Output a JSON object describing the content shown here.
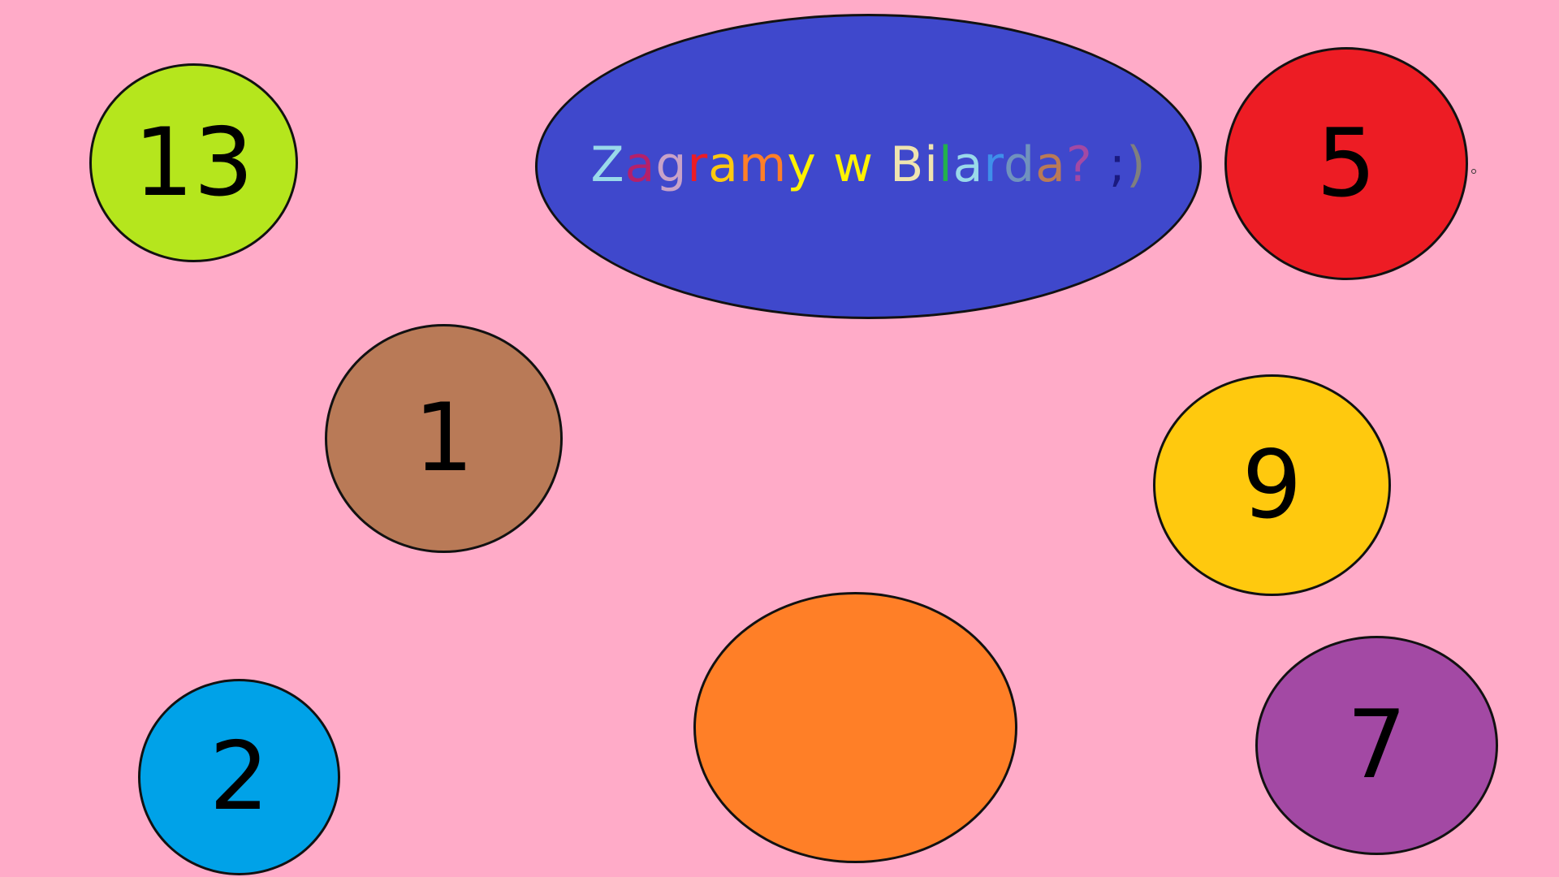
{
  "background_color": "#ffabc8",
  "title": {
    "text": "Zagramy w Bilarda? ;)",
    "fill_color": "#3f48cc",
    "letter_colors": [
      "#99d9ea",
      "#b5206a",
      "#c8a2c8",
      "#ed1c24",
      "#ffc90e",
      "#ff7f27",
      "#fff200",
      "#fff200",
      "#efe4b0",
      "#efe4b0",
      "#22b14c",
      "#99d9ea",
      "#3f8fea",
      "#7092be",
      "#b97a57",
      "#a349a4",
      "#1a1a80",
      "#7f7f7f",
      "#7f7f7f",
      "#ffe4ef",
      "#ffb3cf"
    ]
  },
  "balls": [
    {
      "label": "13",
      "color": "#b5e61d"
    },
    {
      "label": "5",
      "color": "#ed1c24"
    },
    {
      "label": "1",
      "color": "#b97a57"
    },
    {
      "label": "9",
      "color": "#ffc90e"
    },
    {
      "label": "2",
      "color": "#00a2e8"
    },
    {
      "label": "",
      "color": "#ff7f27"
    },
    {
      "label": "7",
      "color": "#a349a4"
    }
  ]
}
